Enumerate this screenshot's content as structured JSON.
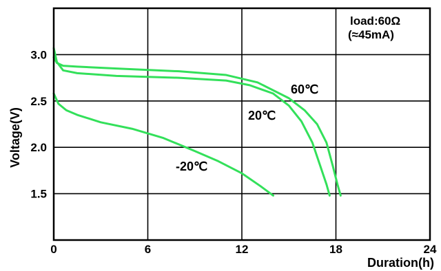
{
  "chart_data": {
    "type": "line",
    "title": "",
    "xlabel": "Duration(h)",
    "ylabel": "Voltage(V)",
    "xlim": [
      0,
      24
    ],
    "ylim": [
      1.0,
      3.5
    ],
    "x_ticks": [
      "0",
      "6",
      "12",
      "18",
      "24"
    ],
    "y_ticks": [
      "1.5",
      "2.0",
      "2.5",
      "3.0"
    ],
    "y_tick_values": [
      1.5,
      2.0,
      2.5,
      3.0
    ],
    "x_tick_values": [
      0,
      6,
      12,
      18,
      24
    ],
    "grid": true,
    "annotations": [
      "load:60Ω",
      "(≈45mA)"
    ],
    "series": [
      {
        "name": "60℃",
        "color": "#33e05a",
        "x": [
          0,
          0.2,
          0.6,
          1.5,
          4,
          8,
          11,
          13,
          15,
          16,
          16.8,
          17.4,
          17.8,
          18.1,
          18.3
        ],
        "y": [
          2.97,
          2.91,
          2.88,
          2.87,
          2.85,
          2.82,
          2.78,
          2.7,
          2.53,
          2.4,
          2.25,
          2.05,
          1.8,
          1.6,
          1.48
        ]
      },
      {
        "name": "20℃",
        "color": "#33e05a",
        "x": [
          0,
          0.2,
          0.6,
          1.5,
          4,
          8,
          11,
          12.5,
          14,
          15,
          15.8,
          16.5,
          17,
          17.4,
          17.6
        ],
        "y": [
          3.07,
          2.92,
          2.83,
          2.8,
          2.77,
          2.75,
          2.72,
          2.67,
          2.58,
          2.45,
          2.28,
          2.05,
          1.8,
          1.6,
          1.48
        ]
      },
      {
        "name": "-20℃",
        "color": "#33e05a",
        "x": [
          0,
          0.3,
          0.8,
          1.5,
          3,
          5,
          7,
          9,
          10.5,
          12,
          13.2,
          14
        ],
        "y": [
          2.58,
          2.47,
          2.4,
          2.35,
          2.27,
          2.2,
          2.1,
          1.96,
          1.85,
          1.72,
          1.58,
          1.48
        ]
      }
    ]
  }
}
